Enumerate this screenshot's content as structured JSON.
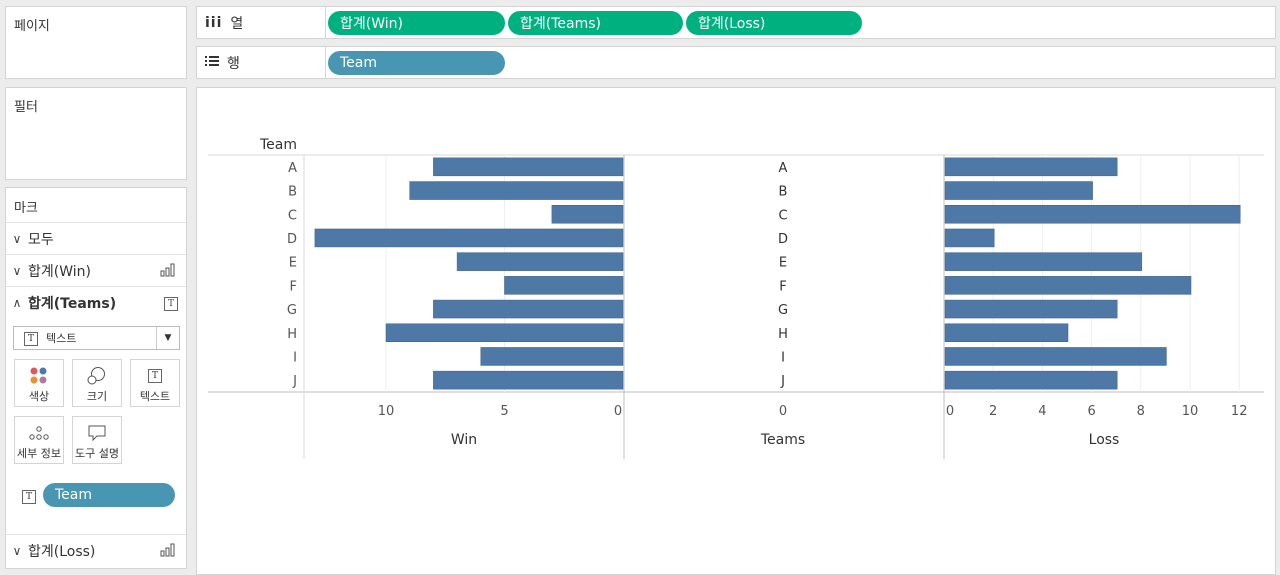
{
  "left": {
    "pages_title": "페이지",
    "filters_title": "필터",
    "marks": {
      "title": "마크",
      "all_label": "모두",
      "win_label": "합계(Win)",
      "teams_label": "합계(Teams)",
      "loss_label": "합계(Loss)",
      "mark_type": "텍스트",
      "buttons": {
        "color": "색상",
        "size": "크기",
        "text": "텍스트",
        "detail": "세부 정보",
        "tooltip": "도구 설명"
      },
      "team_pill": "Team"
    }
  },
  "shelves": {
    "columns_label": "열",
    "rows_label": "행",
    "columns_pills": [
      "합계(Win)",
      "합계(Teams)",
      "합계(Loss)"
    ],
    "rows_pill": "Team"
  },
  "chart_data": {
    "type": "bar",
    "orientation": "horizontal",
    "row_header": "Team",
    "categories": [
      "A",
      "B",
      "C",
      "D",
      "E",
      "F",
      "G",
      "H",
      "I",
      "J"
    ],
    "series": [
      {
        "name": "Win",
        "values": [
          8,
          9,
          3,
          13,
          7,
          5,
          8,
          10,
          6,
          8
        ],
        "axis_ticks": [
          10,
          5,
          0
        ],
        "reversed": true,
        "xlim": [
          0,
          13.5
        ]
      },
      {
        "name": "Teams",
        "text_values": [
          "A",
          "B",
          "C",
          "D",
          "E",
          "F",
          "G",
          "H",
          "I",
          "J"
        ],
        "axis_ticks": [
          0
        ]
      },
      {
        "name": "Loss",
        "values": [
          7,
          6,
          12,
          2,
          8,
          10,
          7,
          5,
          9,
          7
        ],
        "axis_ticks": [
          0,
          2,
          4,
          6,
          8,
          10,
          12
        ],
        "xlim": [
          0,
          13.5
        ]
      }
    ],
    "bar_color": "#4e79a7",
    "grid": true
  }
}
